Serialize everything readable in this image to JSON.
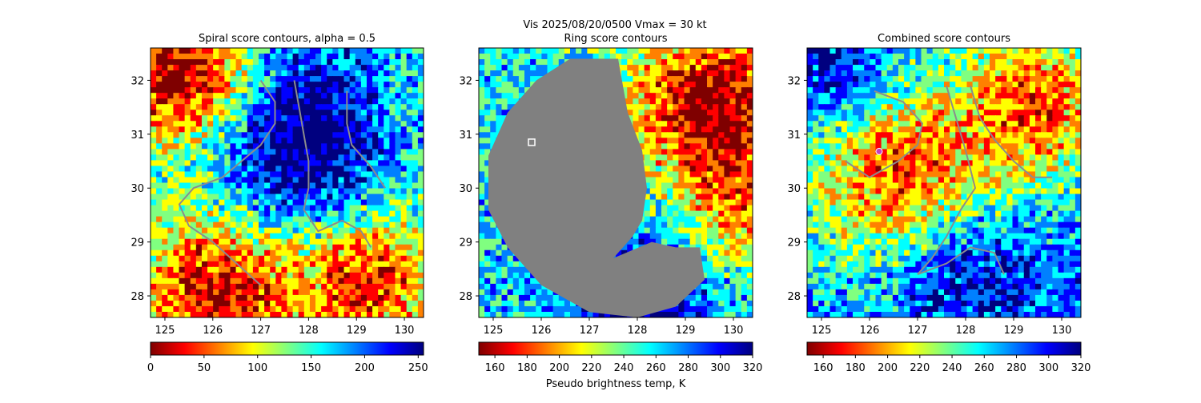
{
  "suptitle": "Vis  2025/08/20/0500    Vmax = 30 kt",
  "colors": {
    "jet": [
      "#7f0000",
      "#ff0000",
      "#ff8000",
      "#ffff00",
      "#80ff80",
      "#00ffff",
      "#0080ff",
      "#0000ff",
      "#00007f"
    ],
    "contour": "#8c8c8c",
    "mask": "#808080",
    "marker_square": "#ffffff",
    "marker_circle": "#c040c0"
  },
  "chart_data": [
    {
      "type": "heatmap",
      "title": "Spiral score contours, alpha =  0.5",
      "xlim": [
        124.7,
        130.4
      ],
      "ylim": [
        27.6,
        32.6
      ],
      "xticks": [
        "125",
        "126",
        "127",
        "128",
        "129",
        "130"
      ],
      "yticks": [
        "28",
        "29",
        "30",
        "31",
        "32"
      ],
      "colorbar": {
        "range": [
          0,
          255
        ],
        "ticks": [
          "0",
          "50",
          "100",
          "150",
          "200",
          "250"
        ],
        "label": ""
      },
      "contours": [
        [
          [
            127.0,
            32.0
          ],
          [
            127.3,
            31.6
          ],
          [
            127.3,
            31.2
          ],
          [
            127.0,
            30.8
          ],
          [
            126.6,
            30.5
          ],
          [
            126.2,
            30.2
          ],
          [
            125.6,
            30.0
          ],
          [
            125.3,
            29.7
          ],
          [
            125.5,
            29.3
          ],
          [
            126.0,
            29.0
          ],
          [
            126.5,
            28.6
          ],
          [
            127.0,
            28.2
          ]
        ],
        [
          [
            127.7,
            32.0
          ],
          [
            127.8,
            31.5
          ],
          [
            127.9,
            31.0
          ],
          [
            128.0,
            30.5
          ],
          [
            128.0,
            30.0
          ],
          [
            127.9,
            29.6
          ],
          [
            128.2,
            29.2
          ],
          [
            128.7,
            29.4
          ],
          [
            129.1,
            29.2
          ],
          [
            129.3,
            28.9
          ]
        ],
        [
          [
            128.8,
            31.8
          ],
          [
            128.8,
            31.2
          ],
          [
            128.9,
            30.8
          ],
          [
            129.3,
            30.4
          ],
          [
            129.6,
            30.0
          ]
        ]
      ]
    },
    {
      "type": "heatmap",
      "title": "Ring score contours",
      "xlim": [
        124.7,
        130.4
      ],
      "ylim": [
        27.6,
        32.6
      ],
      "xticks": [
        "125",
        "126",
        "127",
        "128",
        "129",
        "130"
      ],
      "yticks": [
        "28",
        "29",
        "30",
        "31",
        "32"
      ],
      "colorbar": {
        "range": [
          150,
          320
        ],
        "ticks": [
          "160",
          "180",
          "200",
          "220",
          "240",
          "260",
          "280",
          "300",
          "320"
        ],
        "label": "Pseudo brightness temp, K"
      },
      "marker": {
        "shape": "square",
        "x": 125.8,
        "y": 30.85
      }
    },
    {
      "type": "heatmap",
      "title": "Combined score contours",
      "xlim": [
        124.7,
        130.4
      ],
      "ylim": [
        27.6,
        32.6
      ],
      "xticks": [
        "125",
        "126",
        "127",
        "128",
        "129",
        "130"
      ],
      "yticks": [
        "28",
        "29",
        "30",
        "31",
        "32"
      ],
      "colorbar": {
        "range": [
          150,
          320
        ],
        "ticks": [
          "160",
          "180",
          "200",
          "220",
          "240",
          "260",
          "280",
          "300",
          "320"
        ],
        "label": ""
      },
      "marker": {
        "shape": "circle",
        "x": 126.2,
        "y": 30.68
      },
      "contours": [
        [
          [
            126.1,
            31.8
          ],
          [
            126.7,
            31.6
          ],
          [
            127.1,
            31.2
          ],
          [
            127.0,
            30.8
          ],
          [
            126.6,
            30.5
          ],
          [
            126.0,
            30.2
          ],
          [
            125.5,
            30.5
          ]
        ],
        [
          [
            127.6,
            31.9
          ],
          [
            127.8,
            31.3
          ],
          [
            128.0,
            30.7
          ],
          [
            128.2,
            30.0
          ],
          [
            127.9,
            29.6
          ],
          [
            127.6,
            29.1
          ],
          [
            127.3,
            28.7
          ],
          [
            127.0,
            28.4
          ]
        ],
        [
          [
            128.1,
            31.9
          ],
          [
            128.3,
            31.3
          ],
          [
            128.6,
            30.9
          ],
          [
            129.0,
            30.5
          ],
          [
            129.4,
            30.2
          ],
          [
            129.8,
            30.2
          ]
        ],
        [
          [
            127.0,
            28.4
          ],
          [
            127.6,
            28.6
          ],
          [
            128.1,
            28.9
          ],
          [
            128.6,
            28.8
          ],
          [
            128.8,
            28.4
          ]
        ]
      ]
    }
  ]
}
